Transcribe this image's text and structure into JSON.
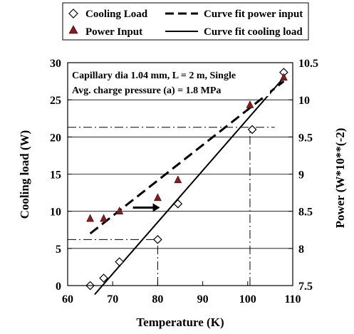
{
  "chart_data": {
    "type": "scatter",
    "annotation_lines": [
      "Capillary dia 1.04 mm, L = 2 m, Single",
      "Avg. charge pressure (a) = 1.8 MPa"
    ],
    "xlabel": "Temperature (K)",
    "ylabel_left": "Cooling load (W)",
    "ylabel_right": "Power (W*10**(-2)",
    "xlim": [
      60,
      110
    ],
    "ylim_left": [
      0,
      30
    ],
    "ylim_right": [
      7.5,
      10.5
    ],
    "x_ticks": [
      "60",
      "70",
      "80",
      "90",
      "100",
      "110"
    ],
    "y_ticks_left": [
      "0",
      "5",
      "10",
      "15",
      "20",
      "25",
      "30"
    ],
    "y_ticks_right": [
      "7.5",
      "8",
      "8.5",
      "9",
      "9.5",
      "10",
      "10.5"
    ],
    "grid": "horizontal",
    "legend_position": "top",
    "series": [
      {
        "name": "Cooling Load",
        "axis": "left",
        "marker": "open-diamond",
        "color": "#000000",
        "x": [
          65,
          68,
          71.5,
          80,
          84.5,
          101,
          108
        ],
        "y": [
          0,
          1,
          3.2,
          6.2,
          11,
          21,
          28.7
        ]
      },
      {
        "name": "Power Input",
        "axis": "right",
        "marker": "filled-triangle",
        "color": "#8b1a1a",
        "x": [
          65,
          68,
          71.5,
          80,
          84.5,
          100.5,
          108
        ],
        "y": [
          8.4,
          8.4,
          8.5,
          8.68,
          8.92,
          9.93,
          10.3
        ]
      },
      {
        "name": "Curve fit power input",
        "axis": "right",
        "style": "dashed",
        "color": "#000000",
        "x": [
          65,
          108
        ],
        "y": [
          8.2,
          10.25
        ]
      },
      {
        "name": "Curve fit cooling load",
        "axis": "left",
        "style": "solid",
        "color": "#000000",
        "x": [
          66,
          108
        ],
        "y": [
          -1.2,
          28.0
        ]
      }
    ],
    "reference_lines": [
      {
        "orientation": "horizontal",
        "axis": "left",
        "value": 6.2,
        "x_from": 60,
        "x_to": 80
      },
      {
        "orientation": "vertical",
        "x": 80,
        "y_from": 0,
        "y_to": 6.2
      },
      {
        "orientation": "horizontal",
        "axis": "left",
        "value": 21.3,
        "x_from": 60,
        "x_to": 106
      },
      {
        "orientation": "vertical",
        "x": 100.5,
        "y_from": 0,
        "y_to": 21.3
      }
    ],
    "arrow": {
      "x_from": 74.5,
      "x_to": 80.5,
      "y_left": 10.5
    }
  }
}
